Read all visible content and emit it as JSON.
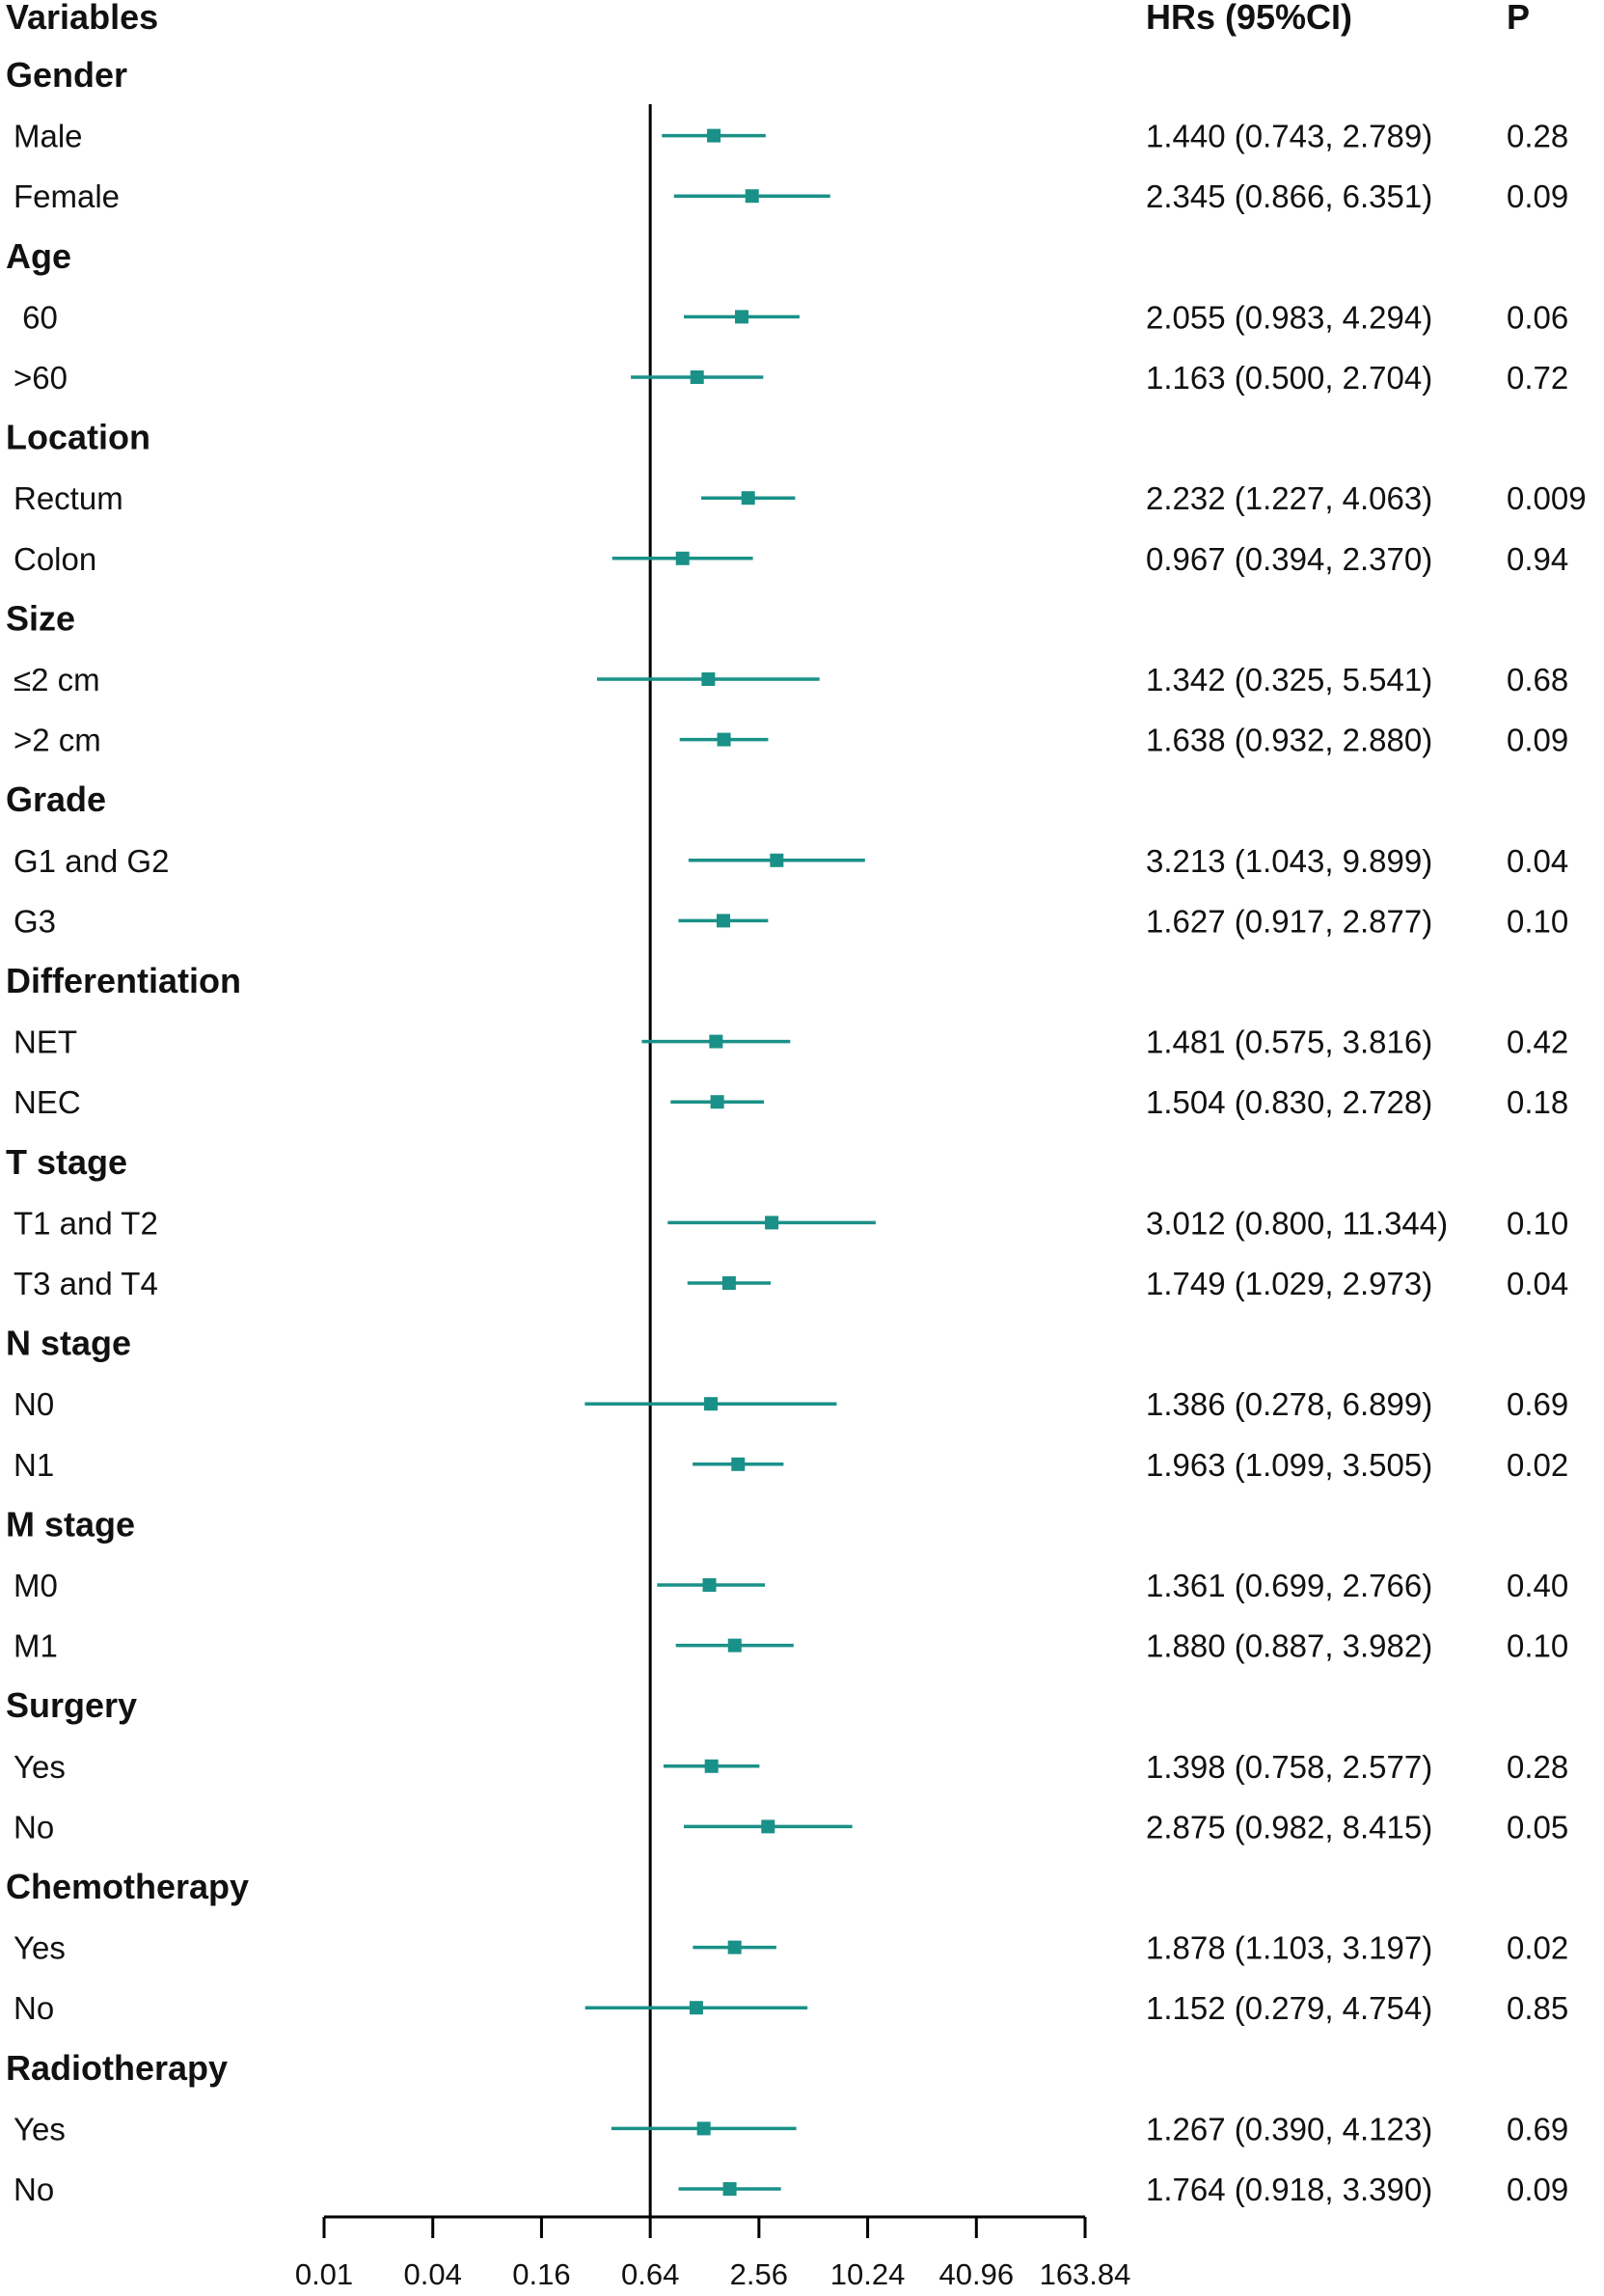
{
  "chart_data": {
    "type": "forest",
    "headers": {
      "variables": "Variables",
      "hr": "HRs (95%CI)",
      "p": "P"
    },
    "x_axis": {
      "scale": "log",
      "ticks": [
        0.01,
        0.04,
        0.16,
        0.64,
        2.56,
        10.24,
        40.96,
        163.84
      ],
      "tick_labels": [
        "0.01",
        "0.04",
        "0.16",
        "0.64",
        "2.56",
        "10.24",
        "40.96",
        "163.84"
      ],
      "reference_line": 0.64
    },
    "rows": [
      {
        "kind": "group",
        "label": "Gender"
      },
      {
        "kind": "item",
        "label": "Male",
        "hr": 1.44,
        "lo": 0.743,
        "hi": 2.789,
        "hr_text": "1.440 (0.743, 2.789)",
        "p": "0.28"
      },
      {
        "kind": "item",
        "label": "Female",
        "hr": 2.345,
        "lo": 0.866,
        "hi": 6.351,
        "hr_text": "2.345 (0.866, 6.351)",
        "p": "0.09"
      },
      {
        "kind": "group",
        "label": "Age"
      },
      {
        "kind": "item",
        "label": " 60",
        "hr": 2.055,
        "lo": 0.983,
        "hi": 4.294,
        "hr_text": "2.055 (0.983, 4.294)",
        "p": "0.06"
      },
      {
        "kind": "item",
        "label": ">60",
        "hr": 1.163,
        "lo": 0.5,
        "hi": 2.704,
        "hr_text": "1.163 (0.500, 2.704)",
        "p": "0.72"
      },
      {
        "kind": "group",
        "label": "Location"
      },
      {
        "kind": "item",
        "label": "Rectum",
        "hr": 2.232,
        "lo": 1.227,
        "hi": 4.063,
        "hr_text": "2.232 (1.227, 4.063)",
        "p": "0.009"
      },
      {
        "kind": "item",
        "label": "Colon",
        "hr": 0.967,
        "lo": 0.394,
        "hi": 2.37,
        "hr_text": "0.967 (0.394, 2.370)",
        "p": "0.94"
      },
      {
        "kind": "group",
        "label": "Size"
      },
      {
        "kind": "item",
        "label": "≤2 cm",
        "hr": 1.342,
        "lo": 0.325,
        "hi": 5.541,
        "hr_text": "1.342 (0.325, 5.541)",
        "p": "0.68"
      },
      {
        "kind": "item",
        "label": ">2 cm",
        "hr": 1.638,
        "lo": 0.932,
        "hi": 2.88,
        "hr_text": "1.638 (0.932, 2.880)",
        "p": "0.09"
      },
      {
        "kind": "group",
        "label": "Grade"
      },
      {
        "kind": "item",
        "label": "G1 and G2",
        "hr": 3.213,
        "lo": 1.043,
        "hi": 9.899,
        "hr_text": "3.213 (1.043, 9.899)",
        "p": "0.04"
      },
      {
        "kind": "item",
        "label": "G3",
        "hr": 1.627,
        "lo": 0.917,
        "hi": 2.877,
        "hr_text": "1.627 (0.917, 2.877)",
        "p": "0.10"
      },
      {
        "kind": "group",
        "label": "Differentiation"
      },
      {
        "kind": "item",
        "label": "NET",
        "hr": 1.481,
        "lo": 0.575,
        "hi": 3.816,
        "hr_text": "1.481 (0.575, 3.816)",
        "p": "0.42"
      },
      {
        "kind": "item",
        "label": "NEC",
        "hr": 1.504,
        "lo": 0.83,
        "hi": 2.728,
        "hr_text": "1.504 (0.830, 2.728)",
        "p": "0.18"
      },
      {
        "kind": "group",
        "label": "T stage"
      },
      {
        "kind": "item",
        "label": "T1 and T2",
        "hr": 3.012,
        "lo": 0.8,
        "hi": 11.344,
        "hr_text": "3.012 (0.800, 11.344)",
        "p": "0.10"
      },
      {
        "kind": "item",
        "label": "T3 and T4",
        "hr": 1.749,
        "lo": 1.029,
        "hi": 2.973,
        "hr_text": "1.749 (1.029, 2.973)",
        "p": "0.04"
      },
      {
        "kind": "group",
        "label": "N stage"
      },
      {
        "kind": "item",
        "label": "N0",
        "hr": 1.386,
        "lo": 0.278,
        "hi": 6.899,
        "hr_text": "1.386 (0.278, 6.899)",
        "p": "0.69"
      },
      {
        "kind": "item",
        "label": "N1",
        "hr": 1.963,
        "lo": 1.099,
        "hi": 3.505,
        "hr_text": "1.963 (1.099, 3.505)",
        "p": "0.02"
      },
      {
        "kind": "group",
        "label": "M stage"
      },
      {
        "kind": "item",
        "label": "M0",
        "hr": 1.361,
        "lo": 0.699,
        "hi": 2.766,
        "hr_text": "1.361 (0.699, 2.766)",
        "p": "0.40"
      },
      {
        "kind": "item",
        "label": "M1",
        "hr": 1.88,
        "lo": 0.887,
        "hi": 3.982,
        "hr_text": "1.880 (0.887, 3.982)",
        "p": "0.10"
      },
      {
        "kind": "group",
        "label": "Surgery"
      },
      {
        "kind": "item",
        "label": "Yes",
        "hr": 1.398,
        "lo": 0.758,
        "hi": 2.577,
        "hr_text": "1.398 (0.758, 2.577)",
        "p": "0.28"
      },
      {
        "kind": "item",
        "label": "No",
        "hr": 2.875,
        "lo": 0.982,
        "hi": 8.415,
        "hr_text": "2.875 (0.982, 8.415)",
        "p": "0.05"
      },
      {
        "kind": "group",
        "label": "Chemotherapy"
      },
      {
        "kind": "item",
        "label": "Yes",
        "hr": 1.878,
        "lo": 1.103,
        "hi": 3.197,
        "hr_text": "1.878 (1.103, 3.197)",
        "p": "0.02"
      },
      {
        "kind": "item",
        "label": "No",
        "hr": 1.152,
        "lo": 0.279,
        "hi": 4.754,
        "hr_text": "1.152 (0.279, 4.754)",
        "p": "0.85"
      },
      {
        "kind": "group",
        "label": "Radiotherapy"
      },
      {
        "kind": "item",
        "label": "Yes",
        "hr": 1.267,
        "lo": 0.39,
        "hi": 4.123,
        "hr_text": "1.267 (0.390, 4.123)",
        "p": "0.69"
      },
      {
        "kind": "item",
        "label": "No",
        "hr": 1.764,
        "lo": 0.918,
        "hi": 3.39,
        "hr_text": "1.764 (0.918, 3.390)",
        "p": "0.09"
      }
    ],
    "colors": {
      "marker": "#1a9188",
      "reference": "#000000",
      "axis": "#000000"
    }
  }
}
